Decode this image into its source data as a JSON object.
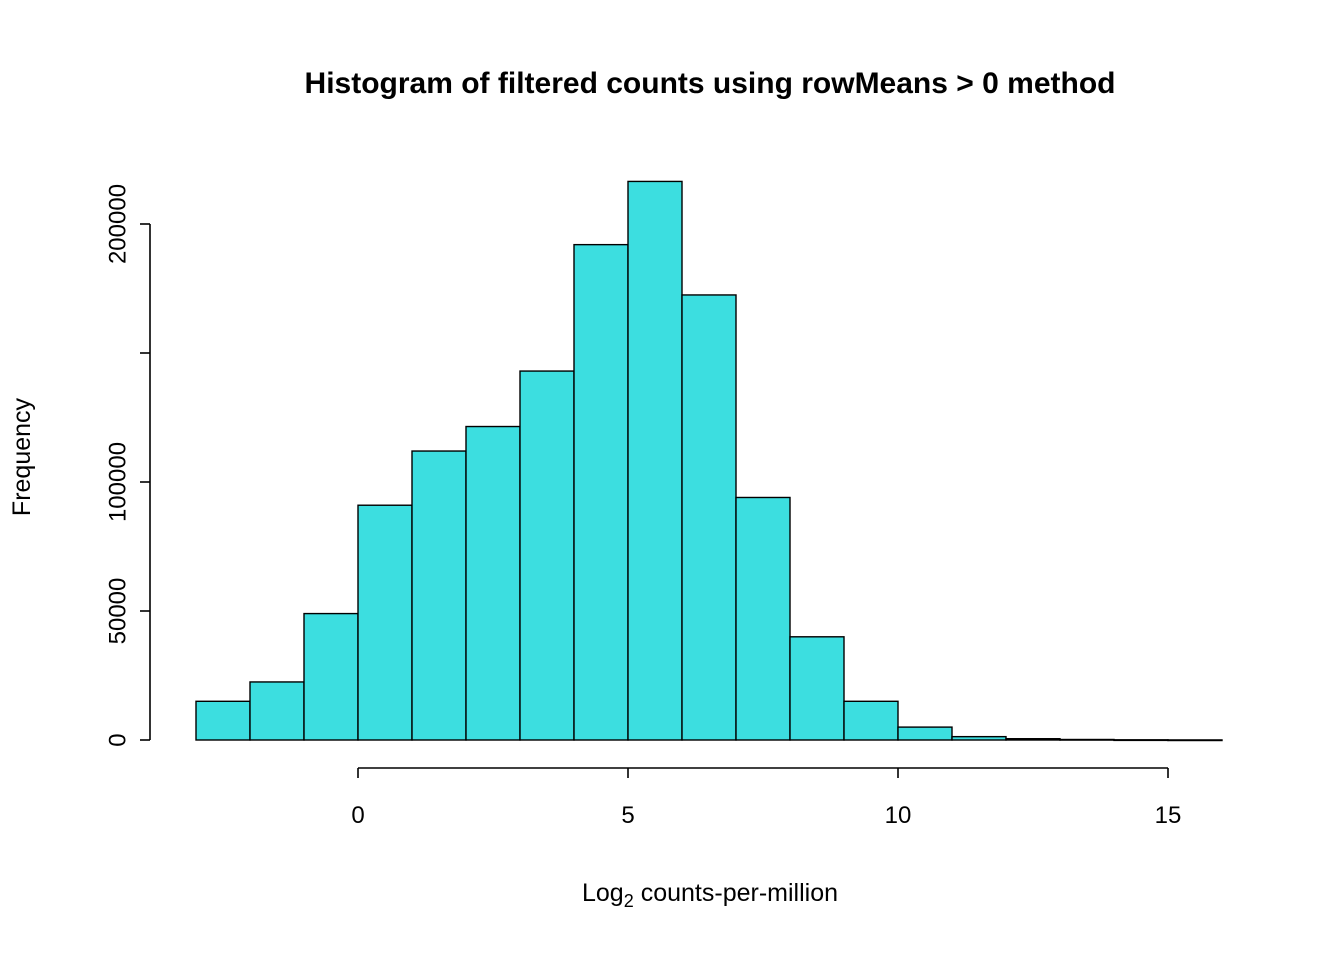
{
  "figure": {
    "background": "#FFFFFF"
  },
  "chart_data": {
    "type": "bar",
    "subtype": "histogram",
    "title": "Histogram of filtered counts using rowMeans > 0 method",
    "xlabel": "Log2 counts-per-million",
    "xlabel_parts": {
      "prefix": "Log",
      "subscript": "2",
      "rest": "counts-per-million"
    },
    "ylabel": "Frequency",
    "bar_fill": "#3CDEE0",
    "bar_stroke": "#000000",
    "background": "#FFFFFF",
    "grid": false,
    "legend": "none",
    "bin_width": 1,
    "bin_breaks": [
      -3,
      -2,
      -1,
      0,
      1,
      2,
      3,
      4,
      5,
      6,
      7,
      8,
      9,
      10,
      11,
      12,
      13,
      14,
      15,
      16
    ],
    "counts": [
      15000,
      22500,
      49000,
      91000,
      112000,
      121500,
      143000,
      192000,
      216500,
      172500,
      94000,
      40000,
      15000,
      5000,
      1300,
      500,
      200,
      80,
      30
    ],
    "x_ticks": [
      {
        "value": 0,
        "label": "0"
      },
      {
        "value": 5,
        "label": "5"
      },
      {
        "value": 10,
        "label": "10"
      },
      {
        "value": 15,
        "label": "15"
      }
    ],
    "y_ticks": [
      {
        "value": 0,
        "label": "0"
      },
      {
        "value": 50000,
        "label": "50000"
      },
      {
        "value": 100000,
        "label": "100000"
      },
      {
        "value": 150000,
        "label": ""
      },
      {
        "value": 200000,
        "label": "200000"
      }
    ],
    "xlim": [
      -3,
      16
    ],
    "ylim": [
      0,
      230000
    ]
  }
}
